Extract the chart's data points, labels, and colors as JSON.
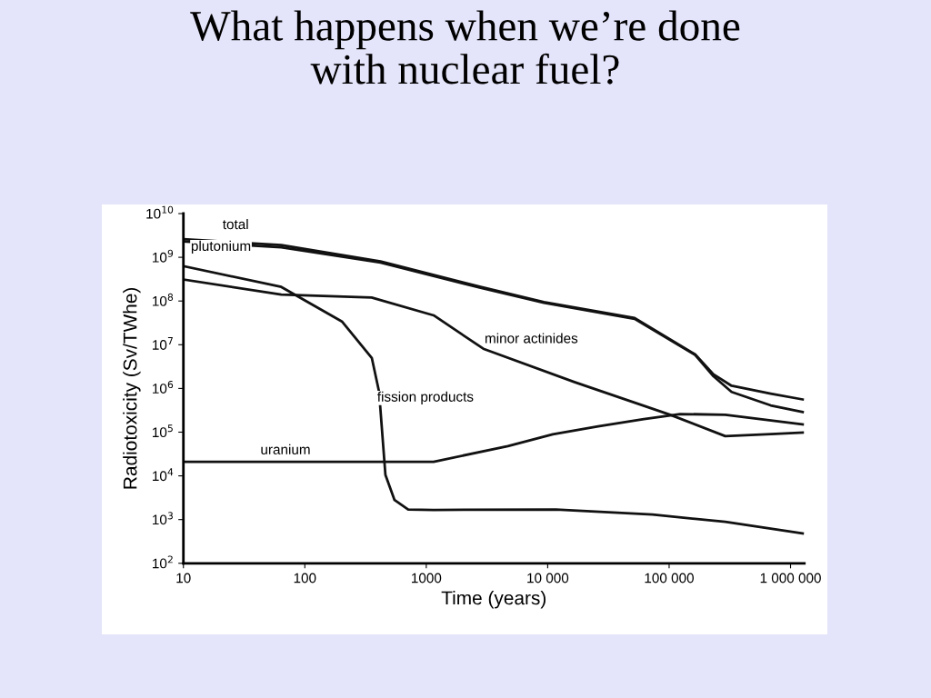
{
  "chart_data": {
    "type": "line",
    "title": "What happens when we’re done\nwith nuclear fuel?",
    "xlabel": "Time (years)",
    "ylabel": "Radiotoxicity (Sv/TWhe)",
    "log": "xy",
    "xlim": [
      10,
      1300000
    ],
    "ylim": [
      100,
      10000000000
    ],
    "xticks": [
      10,
      100,
      {
        "value": 1000,
        "label": "1000"
      },
      {
        "value": 10000,
        "label": "10 000"
      },
      {
        "value": 100000,
        "label": "100 000"
      },
      {
        "value": 1000000,
        "label": "1 000 000"
      }
    ],
    "yticks": [
      {
        "value": 100,
        "label": "10$^{2}$"
      },
      {
        "value": 1000,
        "label": "10$^{3}$"
      },
      {
        "value": 10000,
        "label": "10$^{4}$"
      },
      {
        "value": 100000,
        "label": "10$^{5}$"
      },
      {
        "value": 1000000,
        "label": "10$^{6}$"
      },
      {
        "value": 10000000,
        "label": "10$^{7}$"
      },
      {
        "value": 100000000,
        "label": "10$^{8}$"
      },
      {
        "value": 1000000000,
        "label": "10$^{9}$"
      },
      {
        "value": 10000000000,
        "label": "10$^{10}$"
      }
    ],
    "grid": false,
    "marker": "none",
    "line_style": "solid",
    "series": [
      {
        "color": "#111111",
        "x": [
          10,
          64,
          420,
          2800,
          9300,
          52000,
          164000,
          232000,
          327000,
          686000,
          1260000
        ],
        "values": [
          2600000000,
          1900000000,
          810000000,
          210000000,
          95000000,
          41000000,
          6000000,
          2100000,
          1150000,
          760000,
          560000
        ]
      },
      {
        "color": "#111111",
        "x": [
          10,
          64,
          420,
          2800,
          9300,
          52000,
          164000,
          232000,
          327000,
          686000,
          1260000
        ],
        "values": [
          2300000000,
          1700000000,
          760000000,
          200000000,
          91000000,
          39000000,
          5800000,
          1900000,
          830000,
          410000,
          290000
        ]
      },
      {
        "color": "#111111",
        "x": [
          10,
          64,
          355,
          1150,
          2950,
          16600,
          102000,
          290000,
          690000,
          1260000
        ],
        "values": [
          310000000,
          140000000,
          120000000,
          47000000,
          8100000,
          1400000,
          250000,
          81000,
          90000,
          98000
        ]
      },
      {
        "color": "#111111",
        "x": [
          10,
          64,
          202,
          356,
          409,
          461,
          548,
          710,
          1150,
          11700,
          73000,
          290000,
          1260000
        ],
        "values": [
          630000000,
          210000000,
          34000000,
          5000000,
          830000,
          10500,
          2800,
          1700,
          1660,
          1700,
          1300,
          890,
          480
        ]
      },
      {
        "color": "#111111",
        "x": [
          10,
          1150,
          4700,
          11000,
          26000,
          62000,
          123000,
          290000,
          1260000
        ],
        "values": [
          21000,
          21000,
          48000,
          89000,
          135000,
          200000,
          260000,
          250000,
          150000
        ]
      }
    ],
    "annotations": [
      "total",
      "plutonium",
      "minor actinides",
      "fission products",
      "uranium"
    ]
  }
}
